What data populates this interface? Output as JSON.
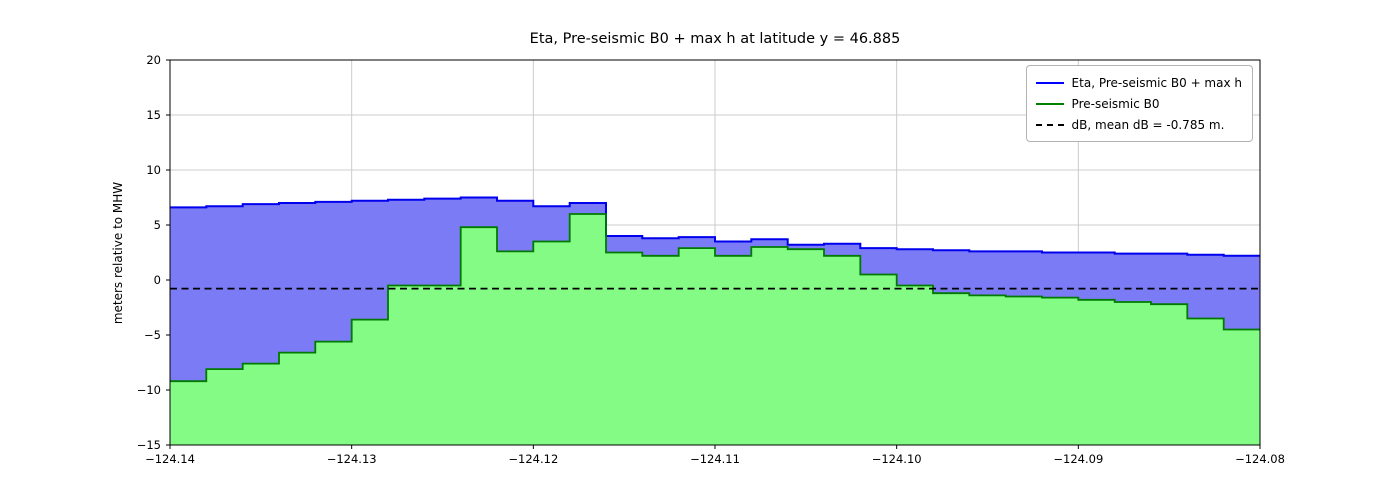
{
  "legend": {
    "entries": [
      {
        "label": "Eta, Pre-seismic B0 + max h",
        "color": "#0000ff",
        "style": "solid"
      },
      {
        "label": "Pre-seismic B0",
        "color": "#008000",
        "style": "solid"
      },
      {
        "label": "dB, mean dB = -0.785 m.",
        "color": "#000000",
        "style": "dashed"
      }
    ]
  },
  "chart_data": {
    "type": "area",
    "step": true,
    "title": "Eta, Pre-seismic B0 + max h at latitude y = 46.885",
    "xlabel": "",
    "ylabel": "meters relative to MHW",
    "xlim": [
      -124.14,
      -124.08
    ],
    "ylim": [
      -15,
      20
    ],
    "grid": true,
    "legend_position": "upper right",
    "x_edges": [
      -124.14,
      -124.138,
      -124.136,
      -124.134,
      -124.132,
      -124.13,
      -124.128,
      -124.126,
      -124.124,
      -124.122,
      -124.12,
      -124.118,
      -124.116,
      -124.114,
      -124.112,
      -124.11,
      -124.108,
      -124.106,
      -124.104,
      -124.102,
      -124.1,
      -124.098,
      -124.096,
      -124.094,
      -124.092,
      -124.09,
      -124.088,
      -124.086,
      -124.084,
      -124.082,
      -124.08
    ],
    "series": [
      {
        "name": "Eta, Pre-seismic B0 + max h",
        "values": [
          6.6,
          6.7,
          6.9,
          7.0,
          7.1,
          7.2,
          7.3,
          7.4,
          7.5,
          7.2,
          6.7,
          7.0,
          4.0,
          3.8,
          3.9,
          3.5,
          3.7,
          3.2,
          3.3,
          2.9,
          2.8,
          2.7,
          2.6,
          2.6,
          2.5,
          2.5,
          2.4,
          2.4,
          2.3,
          2.2
        ],
        "line_color": "#0000ee",
        "fill_color": "#7b7bf5"
      },
      {
        "name": "Pre-seismic B0",
        "values": [
          -9.2,
          -8.1,
          -7.6,
          -6.6,
          -5.6,
          -3.6,
          -0.5,
          -0.5,
          4.8,
          2.6,
          3.5,
          6.0,
          2.5,
          2.2,
          2.9,
          2.2,
          3.0,
          2.8,
          2.2,
          0.5,
          -0.5,
          -1.2,
          -1.4,
          -1.5,
          -1.6,
          -1.8,
          -2.0,
          -2.2,
          -3.5,
          -4.5
        ],
        "line_color": "#007a00",
        "fill_color": "#84fb84"
      },
      {
        "name": "dB",
        "constant": -0.785,
        "line_color": "#000000",
        "dashed": true
      }
    ],
    "x_ticks": {
      "values": [
        -124.14,
        -124.13,
        -124.12,
        -124.11,
        -124.1,
        -124.09,
        -124.08
      ],
      "labels": [
        "−124.14",
        "−124.13",
        "−124.12",
        "−124.11",
        "−124.10",
        "−124.09",
        "−124.08"
      ]
    },
    "y_ticks": {
      "values": [
        -15,
        -10,
        -5,
        0,
        5,
        10,
        15,
        20
      ],
      "labels": [
        "−15",
        "−10",
        "−5",
        "0",
        "5",
        "10",
        "15",
        "20"
      ]
    }
  }
}
